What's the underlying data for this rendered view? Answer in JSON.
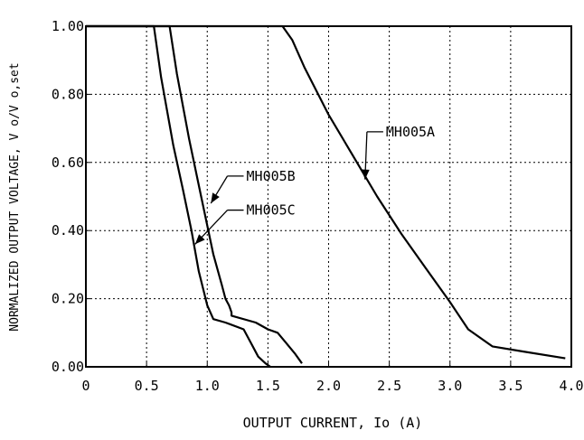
{
  "chart_data": {
    "type": "line",
    "xlabel": "OUTPUT CURRENT, Io (A)",
    "ylabel": "NORMALIZED OUTPUT VOLTAGE, V o/V o,set",
    "xlim": [
      0,
      4.0
    ],
    "ylim": [
      0,
      1.0
    ],
    "grid": true,
    "x_ticks": [
      0,
      0.5,
      1.0,
      1.5,
      2.0,
      2.5,
      3.0,
      3.5,
      4.0
    ],
    "x_tick_labels": [
      "0",
      "0.5",
      "1.0",
      "1.5",
      "2.0",
      "2.5",
      "3.0",
      "3.5",
      "4.0"
    ],
    "y_ticks": [
      0,
      0.2,
      0.4,
      0.6,
      0.8,
      1.0
    ],
    "y_tick_labels": [
      "0.00",
      "0.20",
      "0.40",
      "0.60",
      "0.80",
      "1.00"
    ],
    "series": [
      {
        "name": "MH005A",
        "x": [
          0,
          1.62,
          1.7,
          1.8,
          2.0,
          2.2,
          2.4,
          2.6,
          2.8,
          3.0,
          3.15,
          3.35,
          3.6,
          3.95
        ],
        "y": [
          1.0,
          1.0,
          0.96,
          0.88,
          0.74,
          0.62,
          0.5,
          0.39,
          0.29,
          0.19,
          0.11,
          0.06,
          0.045,
          0.025
        ]
      },
      {
        "name": "MH005B",
        "x": [
          0,
          0.69,
          0.75,
          0.85,
          0.95,
          1.05,
          1.12,
          1.15,
          1.18,
          1.2,
          1.2,
          1.4,
          1.5,
          1.58,
          1.65,
          1.72,
          1.78
        ],
        "y": [
          1.0,
          1.0,
          0.86,
          0.67,
          0.5,
          0.33,
          0.24,
          0.2,
          0.18,
          0.16,
          0.15,
          0.13,
          0.11,
          0.1,
          0.07,
          0.04,
          0.01
        ]
      },
      {
        "name": "MH005C",
        "x": [
          0,
          0.56,
          0.62,
          0.72,
          0.8,
          0.87,
          0.93,
          1.0,
          1.05,
          1.15,
          1.3,
          1.36,
          1.42,
          1.48,
          1.52
        ],
        "y": [
          1.0,
          1.0,
          0.85,
          0.65,
          0.52,
          0.4,
          0.28,
          0.18,
          0.14,
          0.13,
          0.11,
          0.07,
          0.03,
          0.01,
          0.0
        ]
      }
    ],
    "annotations": [
      {
        "text": "MH005A",
        "series": 0,
        "x": 2.3,
        "y": 0.55,
        "label_at": [
          2.45,
          0.69
        ]
      },
      {
        "text": "MH005B",
        "series": 1,
        "x": 1.03,
        "y": 0.48,
        "label_at": [
          1.3,
          0.56
        ]
      },
      {
        "text": "MH005C",
        "series": 2,
        "x": 0.9,
        "y": 0.36,
        "label_at": [
          1.3,
          0.46
        ]
      }
    ]
  }
}
